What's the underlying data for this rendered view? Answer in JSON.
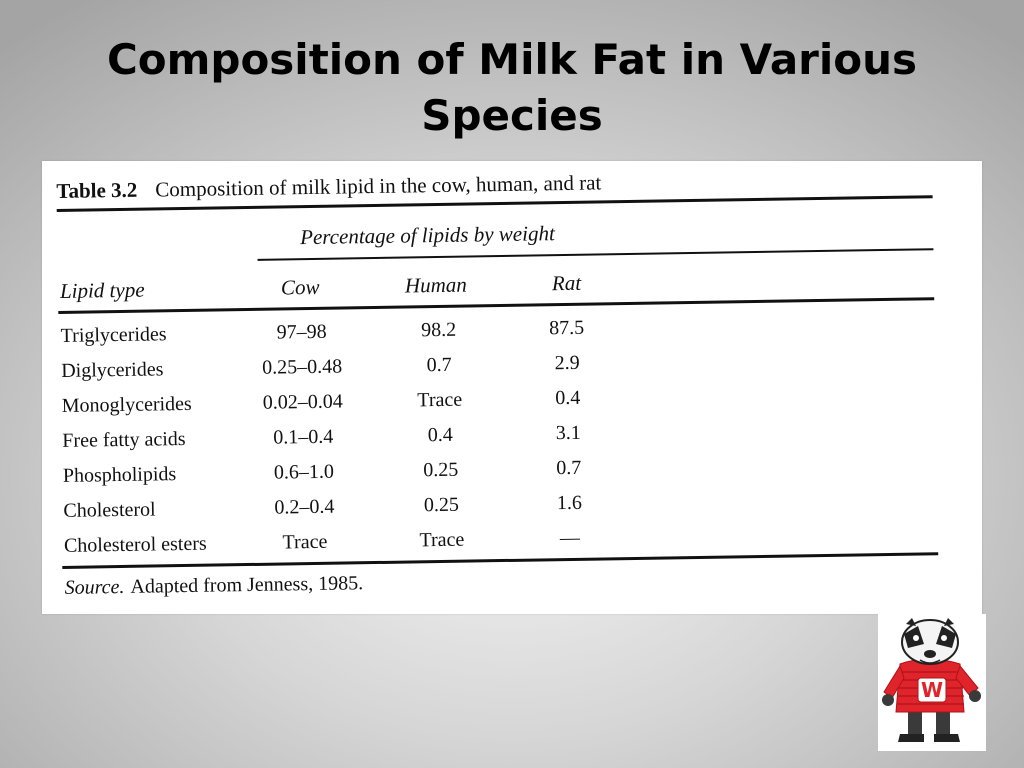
{
  "slide": {
    "title": "Composition of Milk Fat in Various Species"
  },
  "table": {
    "number": "Table 3.2",
    "caption": "Composition of milk lipid in the cow, human, and rat",
    "spanner": "Percentage of lipids by weight",
    "headers": {
      "type": "Lipid type",
      "cow": "Cow",
      "human": "Human",
      "rat": "Rat"
    },
    "rows": [
      {
        "type": "Triglycerides",
        "cow": "97–98",
        "human": "98.2",
        "rat": "87.5"
      },
      {
        "type": "Diglycerides",
        "cow": "0.25–0.48",
        "human": "0.7",
        "rat": "2.9"
      },
      {
        "type": "Monoglycerides",
        "cow": "0.02–0.04",
        "human": "Trace",
        "rat": "0.4"
      },
      {
        "type": "Free fatty acids",
        "cow": "0.1–0.4",
        "human": "0.4",
        "rat": "3.1"
      },
      {
        "type": "Phospholipids",
        "cow": "0.6–1.0",
        "human": "0.25",
        "rat": "0.7"
      },
      {
        "type": "Cholesterol",
        "cow": "0.2–0.4",
        "human": "0.25",
        "rat": "1.6"
      },
      {
        "type": "Cholesterol esters",
        "cow": "Trace",
        "human": "Trace",
        "rat": "—"
      }
    ],
    "source_label": "Source.",
    "source_text": "Adapted from Jenness, 1985."
  },
  "mascot": {
    "icon": "badger-mascot-icon",
    "sweater_color": "#e0242b",
    "letter": "W"
  }
}
